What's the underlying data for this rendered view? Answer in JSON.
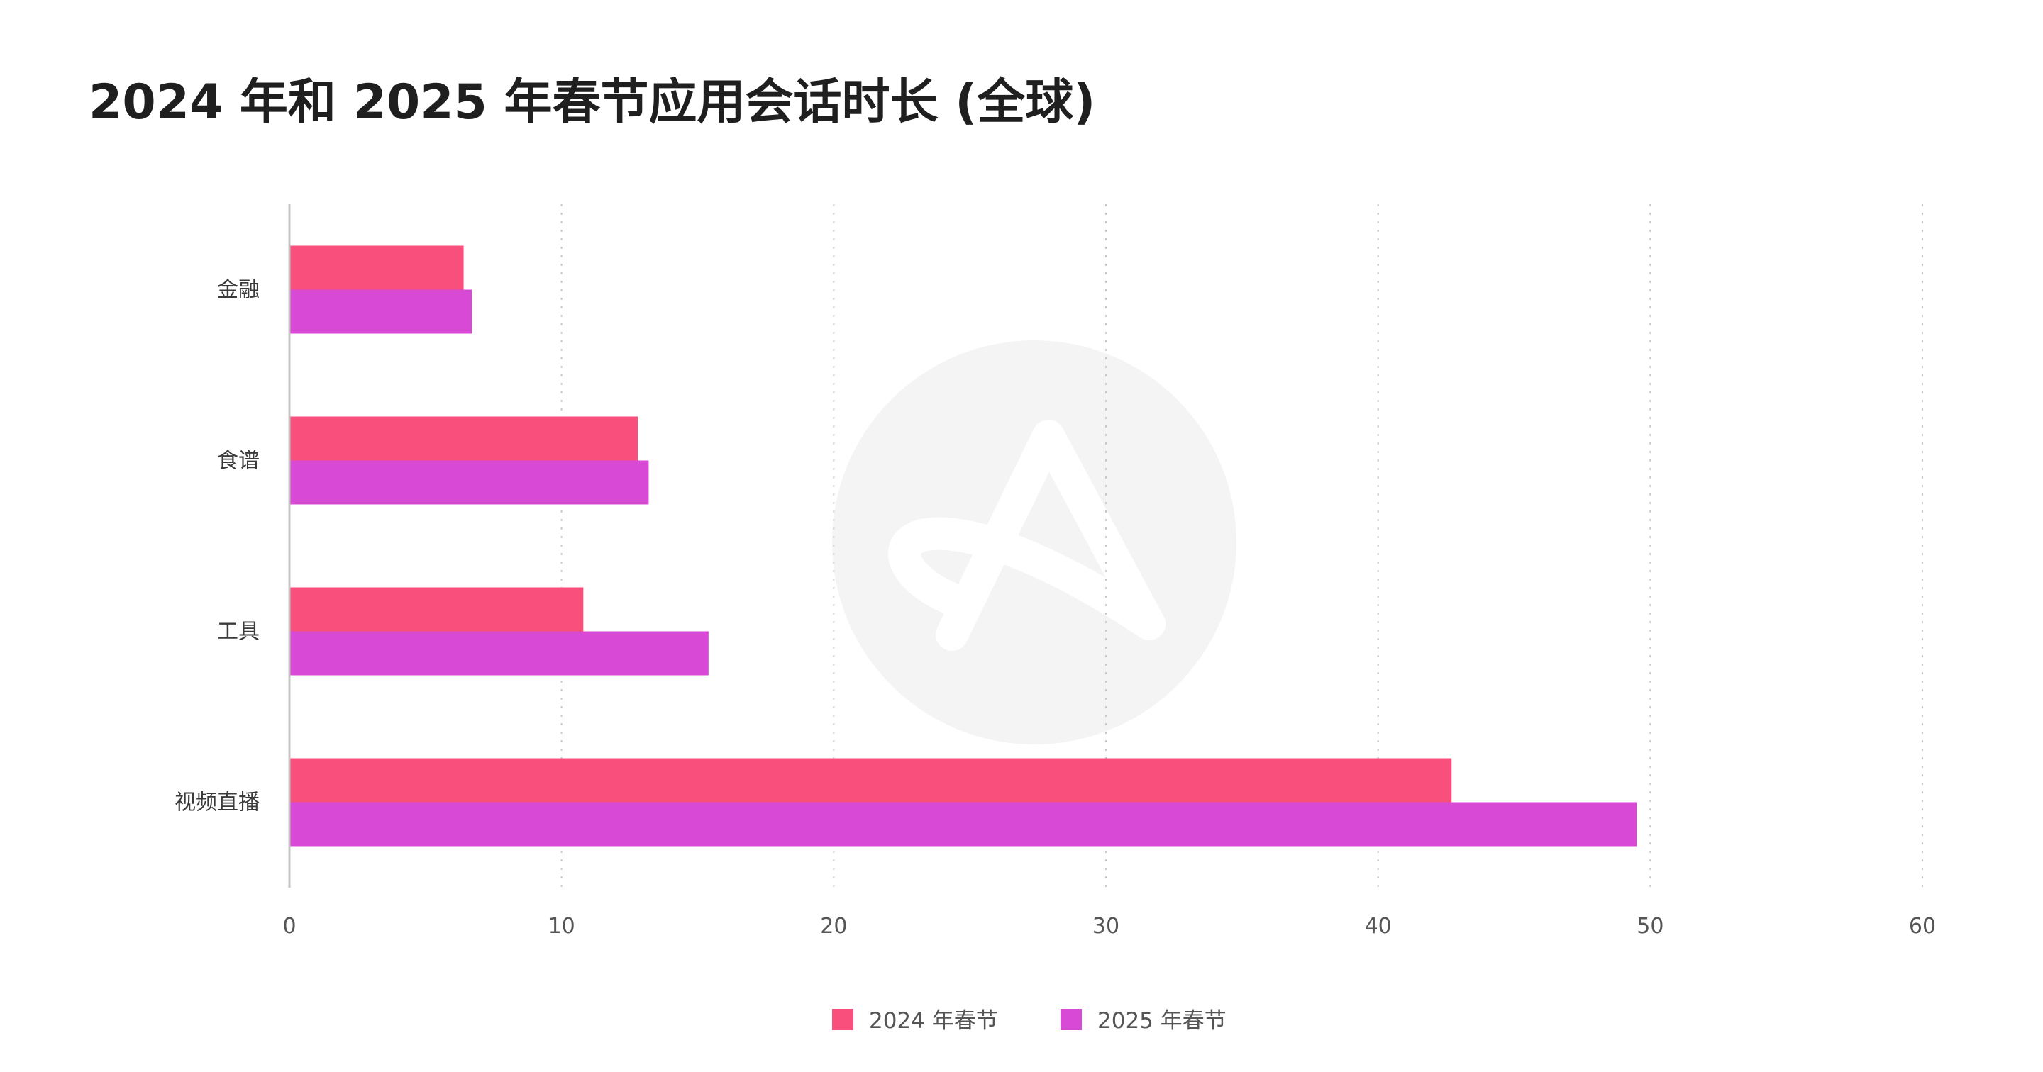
{
  "chart_data": {
    "type": "bar",
    "orientation": "horizontal",
    "title": "2024 年和 2025 年春节应用会话时长 (全球)",
    "categories": [
      "金融",
      "食谱",
      "工具",
      "视频直播"
    ],
    "series": [
      {
        "name": "2024 年春节",
        "color": "#f94f7c",
        "values": [
          6.4,
          12.8,
          10.8,
          42.7
        ]
      },
      {
        "name": "2025 年春节",
        "color": "#d84ad5",
        "values": [
          6.7,
          13.2,
          15.4,
          49.5
        ]
      }
    ],
    "xlim": [
      0,
      60
    ],
    "xticks": [
      0,
      10,
      20,
      30,
      40,
      50,
      60
    ],
    "grid": "vertical dotted",
    "legend_position": "bottom-center"
  }
}
